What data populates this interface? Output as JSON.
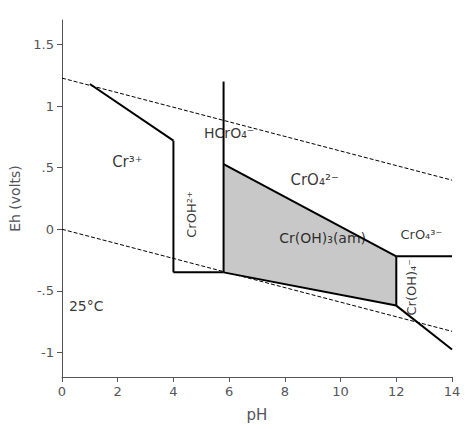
{
  "chart_data": {
    "type": "line",
    "xlabel": "pH",
    "ylabel": "Eh (volts)",
    "xlim": [
      0,
      14
    ],
    "ylim": [
      -1.2,
      1.7
    ],
    "xticks": [
      0,
      2,
      4,
      6,
      8,
      10,
      12,
      14
    ],
    "yticks": [
      -1,
      {
        "value": -0.5,
        "label": "-.5"
      },
      0,
      {
        "value": 0.5,
        "label": ".5"
      },
      1,
      1.5
    ],
    "grid": false,
    "series": [
      {
        "type": "line",
        "line_style": "dashed",
        "color": "#000000",
        "x": [
          0,
          14
        ],
        "y": [
          1.228,
          0.399
        ]
      },
      {
        "type": "line",
        "line_style": "dashed",
        "color": "#000000",
        "x": [
          0,
          14
        ],
        "y": [
          0.0,
          -0.829
        ]
      },
      {
        "type": "polygon",
        "color": "#c8c8c8",
        "points": [
          [
            5.8,
            0.53
          ],
          [
            12.0,
            -0.22
          ],
          [
            12.0,
            -0.62
          ],
          [
            5.8,
            -0.35
          ]
        ]
      },
      {
        "type": "line",
        "line_style": "solid",
        "color": "#000000",
        "x": [
          1.0,
          4.0
        ],
        "y": [
          1.18,
          0.72
        ]
      },
      {
        "type": "line",
        "line_style": "solid",
        "color": "#000000",
        "x": [
          4.0,
          4.0
        ],
        "y": [
          0.72,
          -0.35
        ]
      },
      {
        "type": "line",
        "line_style": "solid",
        "color": "#000000",
        "x": [
          4.0,
          5.8
        ],
        "y": [
          -0.35,
          -0.35
        ]
      },
      {
        "type": "line",
        "line_style": "solid",
        "color": "#000000",
        "x": [
          5.8,
          5.8
        ],
        "y": [
          -0.35,
          1.2
        ]
      },
      {
        "type": "line",
        "line_style": "solid",
        "color": "#000000",
        "x": [
          5.8,
          12.0
        ],
        "y": [
          0.53,
          -0.22
        ]
      },
      {
        "type": "line",
        "line_style": "solid",
        "color": "#000000",
        "x": [
          5.8,
          12.0
        ],
        "y": [
          -0.35,
          -0.62
        ]
      },
      {
        "type": "line",
        "line_style": "solid",
        "color": "#000000",
        "x": [
          12.0,
          12.0
        ],
        "y": [
          -0.22,
          -0.62
        ]
      },
      {
        "type": "line",
        "line_style": "solid",
        "color": "#000000",
        "x": [
          12.0,
          14.0
        ],
        "y": [
          -0.22,
          -0.22
        ]
      },
      {
        "type": "line",
        "line_style": "solid",
        "color": "#000000",
        "x": [
          12.0,
          14.0
        ],
        "y": [
          -0.62,
          -0.977
        ]
      }
    ],
    "annotations": [
      {
        "text": "Cr³⁺",
        "x": 1.8,
        "y": 0.55
      },
      {
        "text": "CrOH²⁺",
        "x": 4.65,
        "y": 0.12
      },
      {
        "text": "HCrO₄⁻",
        "x": 5.1,
        "y": 0.78
      },
      {
        "text": "CrO₄²⁻",
        "x": 8.2,
        "y": 0.4
      },
      {
        "text": "Cr(OH)₃(am)",
        "x": 7.8,
        "y": -0.07
      },
      {
        "text": "CrO₄³⁻",
        "x": 12.15,
        "y": -0.04
      },
      {
        "text": "Cr(OH)₄⁻",
        "x": 12.55,
        "y": -0.47
      },
      {
        "text": "25°C",
        "x": 0.25,
        "y": -0.62
      }
    ]
  }
}
